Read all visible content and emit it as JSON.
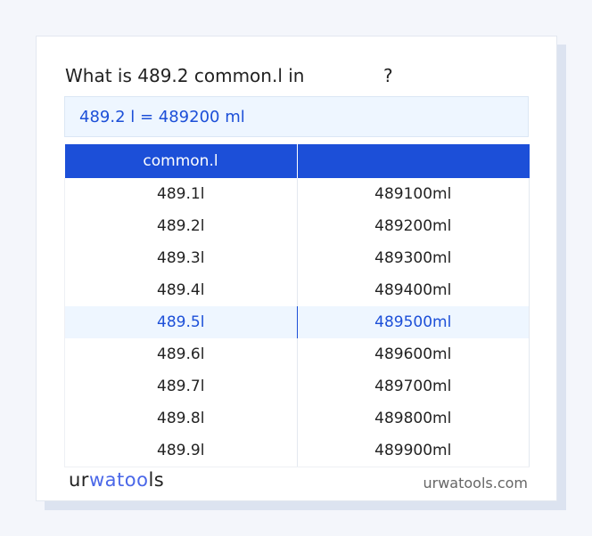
{
  "title": {
    "prefix": "What is 489.2 common.l in",
    "suffix": "?"
  },
  "result": "489.2 l = 489200 ml",
  "table": {
    "headers": [
      "common.l",
      ""
    ],
    "rows": [
      [
        "489.1l",
        "489100ml"
      ],
      [
        "489.2l",
        "489200ml"
      ],
      [
        "489.3l",
        "489300ml"
      ],
      [
        "489.4l",
        "489400ml"
      ],
      [
        "489.5l",
        "489500ml"
      ],
      [
        "489.6l",
        "489600ml"
      ],
      [
        "489.7l",
        "489700ml"
      ],
      [
        "489.8l",
        "489800ml"
      ],
      [
        "489.9l",
        "489900ml"
      ]
    ],
    "highlighted_row": 4
  },
  "footer": {
    "logo": "urwatools",
    "logo_parts": [
      "ur",
      "wat",
      "oo",
      "ls"
    ],
    "site": "urwatools.com"
  },
  "colors": {
    "accent": "#1c4fd8",
    "highlight_bg": "#eef6ff"
  }
}
